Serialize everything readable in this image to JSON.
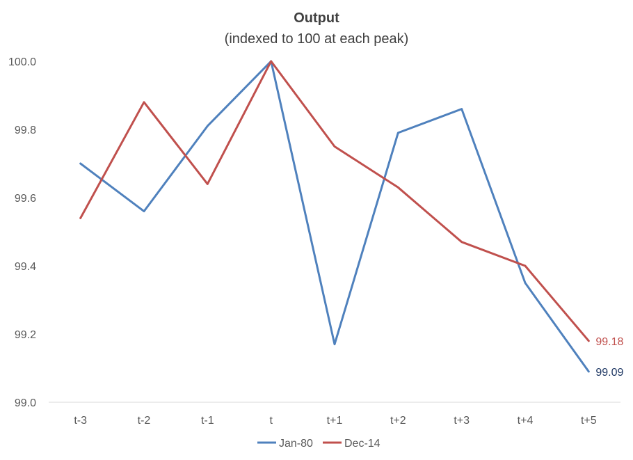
{
  "chart_data": {
    "type": "line",
    "title": "Output",
    "subtitle": "(indexed to 100 at each peak)",
    "categories": [
      "t-3",
      "t-2",
      "t-1",
      "t",
      "t+1",
      "t+2",
      "t+3",
      "t+4",
      "t+5"
    ],
    "ylim": [
      99.0,
      100.0
    ],
    "yticks": [
      "99.0",
      "99.2",
      "99.4",
      "99.6",
      "99.8",
      "100.0"
    ],
    "grid": false,
    "legend_position": "bottom",
    "series": [
      {
        "name": "Jan-80",
        "color": "#4f81bd",
        "values": [
          99.7,
          99.56,
          99.81,
          100.0,
          99.17,
          99.79,
          99.86,
          99.35,
          99.09
        ],
        "end_label": "99.09",
        "end_label_color": "#1f3864"
      },
      {
        "name": "Dec-14",
        "color": "#c0504d",
        "values": [
          99.54,
          99.88,
          99.64,
          100.0,
          99.75,
          99.63,
          99.47,
          99.4,
          99.18
        ],
        "end_label": "99.18",
        "end_label_color": "#c0504d"
      }
    ]
  }
}
